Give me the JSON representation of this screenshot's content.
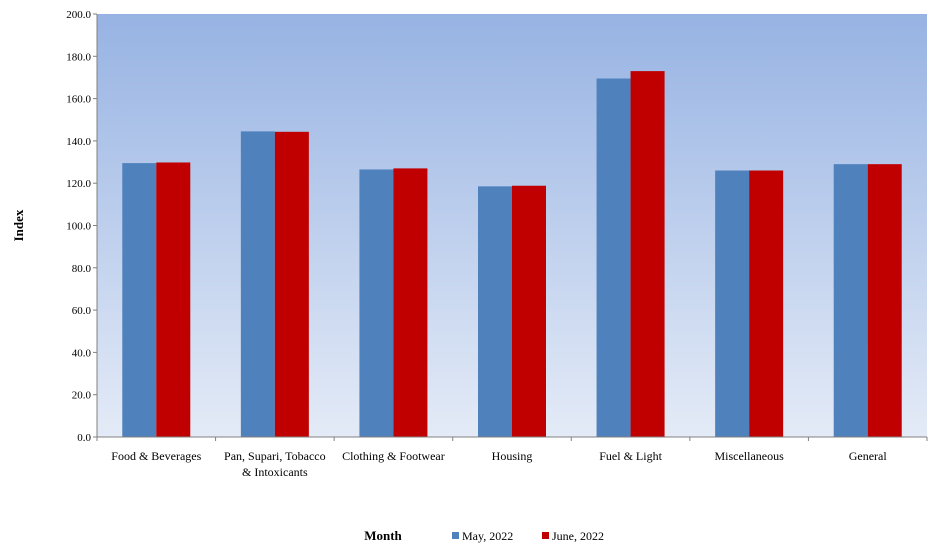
{
  "chart_data": {
    "type": "bar",
    "categories": [
      [
        "Food & Beverages"
      ],
      [
        "Pan, Supari, Tobacco",
        "& Intoxicants"
      ],
      [
        "Clothing & Footwear"
      ],
      [
        "Housing"
      ],
      [
        "Fuel & Light"
      ],
      [
        "Miscellaneous"
      ],
      [
        "General"
      ]
    ],
    "series": [
      {
        "name": "May, 2022",
        "color": "#4f81bd",
        "values": [
          129.5,
          144.5,
          126.5,
          118.5,
          169.5,
          126.0,
          129.0
        ]
      },
      {
        "name": "June, 2022",
        "color": "#c00000",
        "values": [
          129.8,
          144.3,
          127.0,
          118.8,
          173.0,
          126.0,
          129.0
        ]
      }
    ],
    "title": "",
    "xlabel": "Month",
    "ylabel": "Index",
    "ylim": [
      0,
      200
    ],
    "yticks": [
      "0.0",
      "20.0",
      "40.0",
      "60.0",
      "80.0",
      "100.0",
      "120.0",
      "140.0",
      "160.0",
      "180.0",
      "200.0"
    ],
    "grid": false,
    "legend_position": "bottom",
    "plot_background": "gradient blue (top) to light blue (bottom)"
  }
}
